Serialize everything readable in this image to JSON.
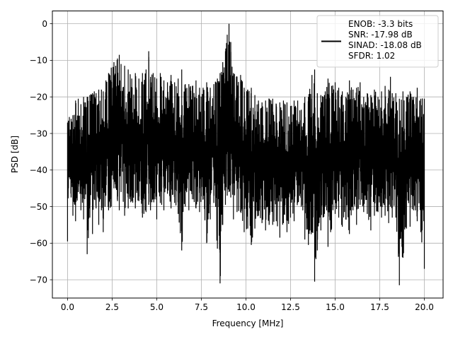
{
  "chart_data": {
    "type": "line",
    "title": "",
    "xlabel": "Frequency [MHz]",
    "ylabel": "PSD [dB]",
    "xlim": [
      -0.85,
      21.05
    ],
    "ylim": [
      -75.0,
      3.5
    ],
    "grid": true,
    "xticks": [
      0.0,
      2.5,
      5.0,
      7.5,
      10.0,
      12.5,
      15.0,
      17.5,
      20.0
    ],
    "xtick_labels": [
      "0.0",
      "2.5",
      "5.0",
      "7.5",
      "10.0",
      "12.5",
      "15.0",
      "17.5",
      "20.0"
    ],
    "yticks": [
      0,
      -10,
      -20,
      -30,
      -40,
      -50,
      -60,
      -70
    ],
    "ytick_labels": [
      "0",
      "−10",
      "−20",
      "−30",
      "−40",
      "−50",
      "−60",
      "−70"
    ],
    "legend": {
      "location": "upper right",
      "entries": [
        "ENOB: -3.3 bits",
        "SNR: -17.98 dB",
        "SINAD: -18.08 dB",
        "SFDR: 1.02"
      ]
    },
    "series": [
      {
        "color": "#000000",
        "x": [
          0.0,
          0.05,
          0.1,
          0.2,
          0.3,
          0.45,
          0.6,
          0.75,
          0.9,
          1.0,
          1.1,
          1.25,
          1.4,
          1.5,
          1.6,
          1.75,
          1.9,
          2.0,
          2.15,
          2.3,
          2.45,
          2.6,
          2.7,
          2.8,
          2.9,
          3.0,
          3.2,
          3.4,
          3.6,
          3.8,
          4.0,
          4.2,
          4.4,
          4.55,
          4.65,
          4.8,
          5.0,
          5.2,
          5.4,
          5.6,
          5.8,
          6.0,
          6.2,
          6.4,
          6.6,
          6.8,
          7.0,
          7.2,
          7.4,
          7.6,
          7.8,
          8.0,
          8.2,
          8.4,
          8.55,
          8.7,
          8.85,
          8.95,
          9.05,
          9.15,
          9.3,
          9.5,
          9.7,
          9.9,
          10.1,
          10.3,
          10.5,
          10.7,
          10.9,
          11.1,
          11.3,
          11.5,
          11.7,
          11.9,
          12.1,
          12.3,
          12.5,
          12.7,
          12.9,
          13.1,
          13.3,
          13.5,
          13.7,
          13.85,
          14.0,
          14.2,
          14.4,
          14.6,
          14.8,
          15.0,
          15.2,
          15.4,
          15.6,
          15.8,
          16.0,
          16.2,
          16.4,
          16.6,
          16.8,
          17.0,
          17.2,
          17.4,
          17.6,
          17.8,
          18.0,
          18.1,
          18.2,
          18.4,
          18.6,
          18.8,
          19.0,
          19.2,
          19.4,
          19.6,
          19.8,
          20.0
        ],
        "upper": [
          -27.0,
          -26.5,
          -25.5,
          -26.0,
          -25.0,
          -21.0,
          -20.5,
          -22.0,
          -20.0,
          -21.5,
          -20.0,
          -19.5,
          -19.0,
          -18.5,
          -19.0,
          -18.0,
          -18.0,
          -18.5,
          -15.5,
          -13.5,
          -12.0,
          -10.5,
          -11.5,
          -9.5,
          -8.5,
          -11.0,
          -11.5,
          -12.5,
          -15.0,
          -13.5,
          -15.0,
          -13.5,
          -12.5,
          -7.5,
          -14.5,
          -13.5,
          -15.0,
          -13.5,
          -15.5,
          -16.0,
          -14.0,
          -16.0,
          -15.0,
          -12.5,
          -16.5,
          -16.5,
          -17.0,
          -15.5,
          -17.5,
          -17.5,
          -16.0,
          -17.5,
          -16.5,
          -15.0,
          -13.5,
          -10.5,
          -7.5,
          -3.0,
          0.0,
          -5.0,
          -13.5,
          -14.5,
          -14.0,
          -17.5,
          -18.0,
          -17.5,
          -19.5,
          -21.0,
          -21.5,
          -21.0,
          -20.5,
          -20.5,
          -22.0,
          -21.5,
          -21.0,
          -21.5,
          -22.5,
          -21.0,
          -21.0,
          -23.5,
          -20.0,
          -20.0,
          -14.0,
          -12.5,
          -19.0,
          -19.5,
          -19.5,
          -15.0,
          -17.0,
          -16.0,
          -17.5,
          -18.5,
          -20.0,
          -15.5,
          -18.0,
          -17.5,
          -16.0,
          -20.0,
          -19.0,
          -19.5,
          -18.0,
          -20.0,
          -18.5,
          -17.0,
          -18.0,
          -14.5,
          -19.0,
          -19.0,
          -20.5,
          -18.5,
          -20.0,
          -18.5,
          -20.0,
          -17.5,
          -20.5,
          -20.5
        ],
        "lower": [
          -59.5,
          -45.0,
          -42.0,
          -47.5,
          -52.5,
          -54.0,
          -46.0,
          -51.0,
          -53.5,
          -46.5,
          -63.0,
          -53.0,
          -57.5,
          -48.0,
          -50.5,
          -55.0,
          -51.0,
          -57.0,
          -47.0,
          -51.0,
          -50.0,
          -45.0,
          -45.0,
          -48.5,
          -51.0,
          -46.0,
          -52.5,
          -50.5,
          -48.5,
          -50.5,
          -48.5,
          -53.0,
          -51.5,
          -49.5,
          -51.0,
          -48.0,
          -53.5,
          -49.0,
          -51.0,
          -46.5,
          -50.5,
          -49.0,
          -52.0,
          -62.0,
          -50.0,
          -51.0,
          -48.0,
          -50.5,
          -51.5,
          -48.0,
          -60.0,
          -53.5,
          -49.0,
          -61.5,
          -71.0,
          -55.0,
          -49.5,
          -47.0,
          -46.0,
          -47.5,
          -53.5,
          -51.5,
          -51.5,
          -57.0,
          -56.0,
          -60.5,
          -56.0,
          -52.5,
          -54.5,
          -56.5,
          -55.0,
          -55.0,
          -54.0,
          -58.5,
          -54.5,
          -57.0,
          -53.0,
          -54.0,
          -49.0,
          -50.0,
          -59.0,
          -60.5,
          -57.0,
          -70.5,
          -62.0,
          -56.5,
          -52.0,
          -61.0,
          -56.0,
          -52.0,
          -53.0,
          -55.5,
          -53.5,
          -57.5,
          -51.0,
          -55.0,
          -49.5,
          -51.5,
          -52.0,
          -56.5,
          -52.5,
          -51.5,
          -53.0,
          -52.5,
          -54.5,
          -50.0,
          -53.0,
          -53.0,
          -71.5,
          -64.0,
          -56.0,
          -55.5,
          -51.0,
          -54.0,
          -57.0,
          -67.0
        ]
      }
    ]
  }
}
